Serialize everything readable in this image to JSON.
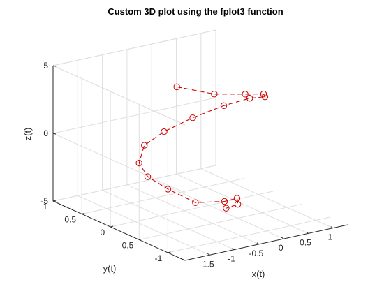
{
  "chart_data": {
    "type": "line",
    "title": "Custom 3D plot using the fplot3 function",
    "xlabel": "x(t)",
    "ylabel": "y(t)",
    "zlabel": "z(t)",
    "xlim": [
      -2,
      1.3
    ],
    "ylim": [
      -1.3,
      1
    ],
    "zlim": [
      -5,
      5
    ],
    "x_ticks": [
      "-1.5",
      "-1",
      "-0.5",
      "0",
      "0.5",
      "1"
    ],
    "y_ticks": [
      "1",
      "0.5",
      "0",
      "-0.5",
      "-1"
    ],
    "z_ticks": [
      "5",
      "0",
      "-5"
    ],
    "grid": true,
    "line_style": "dashed",
    "line_color": "#d00000",
    "marker": "circle",
    "series": [
      {
        "x": [
          -0.84,
          -0.22,
          0.36,
          0.78,
          0.96,
          0.86,
          0.52,
          0.03,
          -0.47,
          -0.87,
          -1.07,
          -1.07,
          -0.88,
          -0.52,
          -0.07,
          0.16,
          0.2,
          -0.06
        ],
        "y": [
          -0.16,
          -0.28,
          -0.32,
          -0.28,
          -0.15,
          0.03,
          0.19,
          0.31,
          0.38,
          0.38,
          0.3,
          0.15,
          -0.04,
          -0.21,
          -0.33,
          -0.35,
          -0.33,
          -0.35
        ],
        "z": [
          4.72,
          3.92,
          3.53,
          3.13,
          2.53,
          2.16,
          1.58,
          0.85,
          0.09,
          -0.6,
          -1.6,
          -2.32,
          -3.03,
          -3.99,
          -4.03,
          -3.94,
          -4.46,
          -4.5
        ]
      }
    ]
  }
}
